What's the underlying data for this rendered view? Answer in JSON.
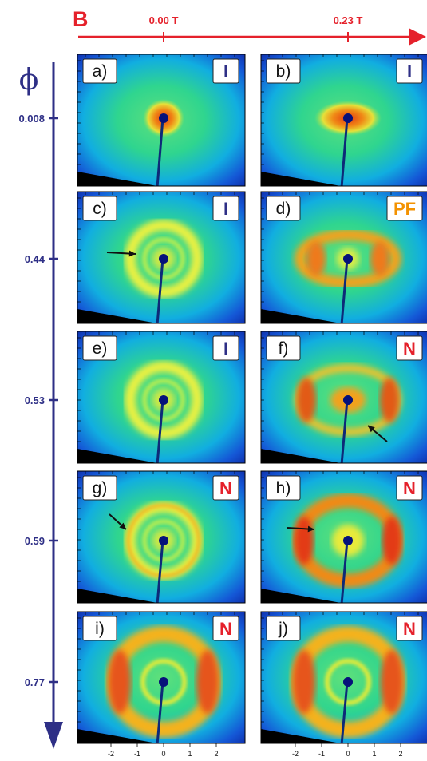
{
  "figure": {
    "field_axis": {
      "symbol": "B",
      "values": [
        "0.00 T",
        "0.23 T"
      ],
      "color": "#e5212b"
    },
    "phi_axis": {
      "symbol": "ϕ",
      "values": [
        "0.008",
        "0.44",
        "0.53",
        "0.59",
        "0.77"
      ],
      "color": "#2e2f86"
    },
    "x_ticks": [
      "-2",
      "-1",
      "0",
      "1",
      "2"
    ],
    "phase_colors": {
      "I": "#2e2f86",
      "PF": "#f39200",
      "N": "#e5212b"
    },
    "panels": [
      {
        "label": "a)",
        "phase": "I"
      },
      {
        "label": "b)",
        "phase": "I"
      },
      {
        "label": "c)",
        "phase": "I"
      },
      {
        "label": "d)",
        "phase": "PF"
      },
      {
        "label": "e)",
        "phase": "I"
      },
      {
        "label": "f)",
        "phase": "N"
      },
      {
        "label": "g)",
        "phase": "N"
      },
      {
        "label": "h)",
        "phase": "N"
      },
      {
        "label": "i)",
        "phase": "N"
      },
      {
        "label": "j)",
        "phase": "N"
      }
    ]
  }
}
